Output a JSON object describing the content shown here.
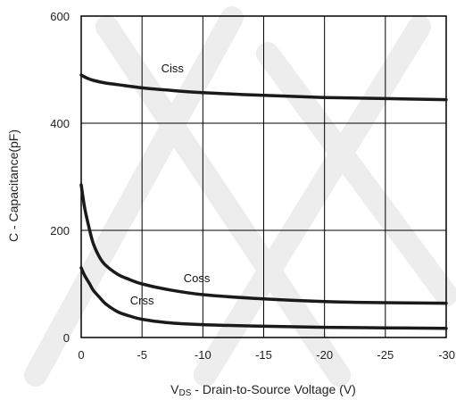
{
  "chart_data": {
    "type": "line",
    "title": "",
    "xlabel_sub_prefix": "V",
    "xlabel_sub": "DS",
    "xlabel_rest": " - Drain-to-Source Voltage (V)",
    "ylabel": "C - Capacitance(pF)",
    "xlim": [
      0,
      -30
    ],
    "ylim": [
      0,
      600
    ],
    "x_ticks": [
      0,
      -5,
      -10,
      -15,
      -20,
      -25,
      -30
    ],
    "x_tick_labels": [
      "0",
      "-5",
      "-10",
      "-15",
      "-20",
      "-25",
      "-30"
    ],
    "y_ticks": [
      0,
      200,
      400,
      600
    ],
    "y_tick_labels": [
      "0",
      "200",
      "400",
      "600"
    ],
    "grid": true,
    "series": [
      {
        "name": "Ciss",
        "x": [
          0,
          -0.5,
          -1,
          -2,
          -3,
          -5,
          -7,
          -10,
          -15,
          -20,
          -25,
          -30
        ],
        "y": [
          490,
          484,
          480,
          475,
          472,
          466,
          462,
          457,
          452,
          448,
          446,
          444
        ]
      },
      {
        "name": "Coss",
        "x": [
          0,
          -0.3,
          -0.7,
          -1,
          -1.5,
          -2,
          -3,
          -4,
          -5,
          -7,
          -10,
          -15,
          -20,
          -25,
          -30
        ],
        "y": [
          285,
          240,
          200,
          175,
          150,
          135,
          118,
          108,
          100,
          90,
          80,
          72,
          67,
          65,
          64
        ]
      },
      {
        "name": "Crss",
        "x": [
          0,
          -0.3,
          -0.7,
          -1,
          -1.5,
          -2,
          -3,
          -4,
          -5,
          -7,
          -10,
          -15,
          -20,
          -25,
          -30
        ],
        "y": [
          130,
          115,
          100,
          88,
          75,
          63,
          48,
          40,
          34,
          28,
          24,
          21,
          19,
          18,
          17
        ]
      }
    ],
    "series_label_color": "#111111",
    "line_color": "#1a1a1a",
    "grid_color": "#000000"
  }
}
